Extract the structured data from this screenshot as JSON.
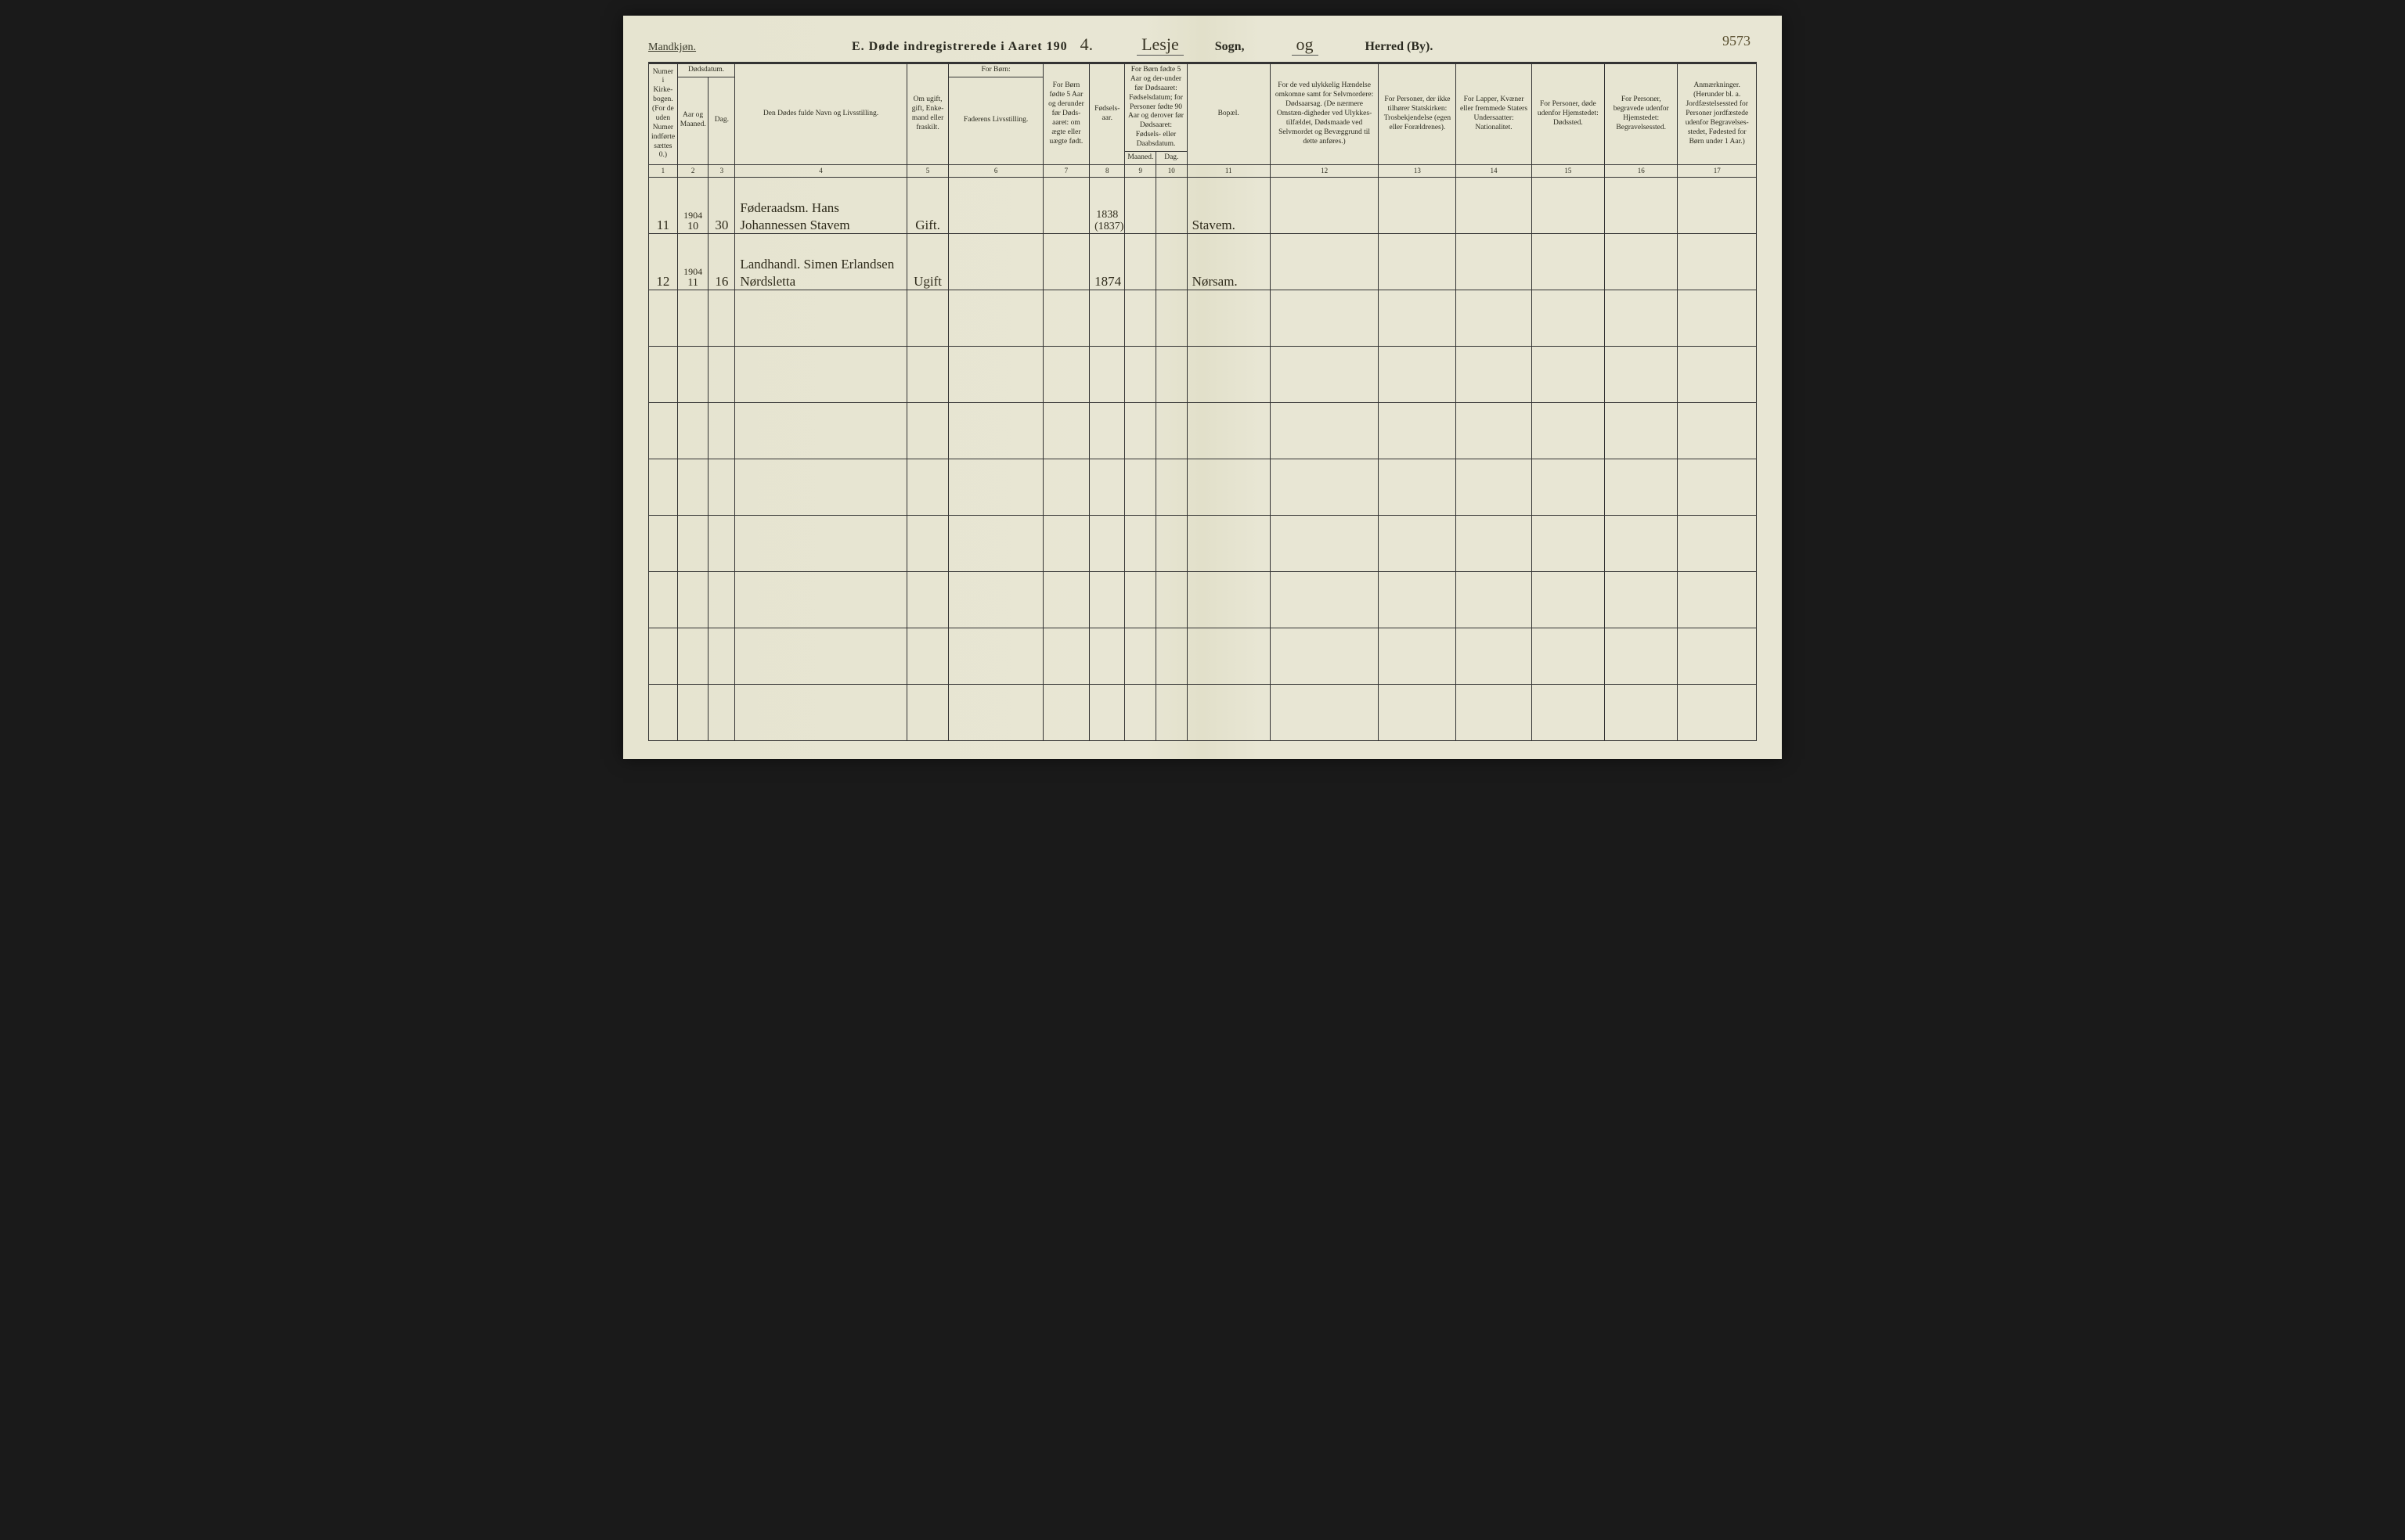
{
  "colors": {
    "paper": "#e8e6d4",
    "ink": "#2a2a1e",
    "rule": "#333333",
    "handwriting": "#2e2a1a",
    "background": "#1a1a1a"
  },
  "header": {
    "gender_label": "Mandkjøn.",
    "title_prefix": "E.   Døde indregistrerede i Aaret 190",
    "year_suffix_hand": "4.",
    "sogn_hand": "Lesje",
    "sogn_label": "Sogn,",
    "herred_hand": "og",
    "herred_label": "Herred (By).",
    "page_number_hand": "9573"
  },
  "columns": {
    "c1": "Numer i Kirke-bogen. (For de uden Numer indførte sættes 0.)",
    "c2_top": "Dødsdatum.",
    "c2": "Aar og Maaned.",
    "c3": "Dag.",
    "c4": "Den Dødes fulde Navn og Livsstilling.",
    "c5": "Om ugift, gift, Enke-mand eller fraskilt.",
    "c6_top": "For Børn:",
    "c6": "Faderens Livsstilling.",
    "c7": "For Børn fødte 5 Aar og derunder før Døds-aaret: om ægte eller uægte født.",
    "c8": "Fødsels-aar.",
    "c9_10_top": "For Børn fødte 5 Aar og der-under før Dødsaaret: Fødselsdatum; for Personer fødte 90 Aar og derover før Dødsaaret: Fødsels- eller Daabsdatum.",
    "c9": "Maaned.",
    "c10": "Dag.",
    "c11": "Bopæl.",
    "c12": "For de ved ulykkelig Hændelse omkomne samt for Selvmordere: Dødsaarsag. (De nærmere Omstæn-digheder ved Ulykkes-tilfældet, Dødsmaade ved Selvmordet og Bevæggrund til dette anføres.)",
    "c13": "For Personer, der ikke tilhører Statskirken: Trosbekjendelse (egen eller Forældrenes).",
    "c14": "For Lapper, Kvæner eller fremmede Staters Undersaatter: Nationalitet.",
    "c15": "For Personer, døde udenfor Hjemstedet: Dødssted.",
    "c16": "For Personer, begravede udenfor Hjemstedet: Begravelsessted.",
    "c17": "Anmærkninger. (Herunder bl. a. Jordfæstelsessted for Personer jordfæstede udenfor Begravelses-stedet, Fødested for Børn under 1 Aar.)"
  },
  "colnums": [
    "1",
    "2",
    "3",
    "4",
    "5",
    "6",
    "7",
    "8",
    "9",
    "10",
    "11",
    "12",
    "13",
    "14",
    "15",
    "16",
    "17"
  ],
  "rows": [
    {
      "num": "11",
      "year": "1904",
      "month": "10",
      "day": "30",
      "name": "Føderaadsm. Hans Johannessen Stavem",
      "civil": "Gift.",
      "father": "",
      "legit": "",
      "birth_year": "1838\n(1837)",
      "b_month": "",
      "b_day": "",
      "residence": "Stavem.",
      "cause": "",
      "faith": "",
      "nationality": "",
      "death_place": "",
      "burial_place": "",
      "remarks": ""
    },
    {
      "num": "12",
      "year": "1904",
      "month": "11",
      "day": "16",
      "name": "Landhandl. Simen Erlandsen Nørdsletta",
      "civil": "Ugift",
      "father": "",
      "legit": "",
      "birth_year": "1874",
      "b_month": "",
      "b_day": "",
      "residence": "Nørsam.",
      "cause": "",
      "faith": "",
      "nationality": "",
      "death_place": "",
      "burial_place": "",
      "remarks": ""
    }
  ],
  "empty_rows": 8
}
